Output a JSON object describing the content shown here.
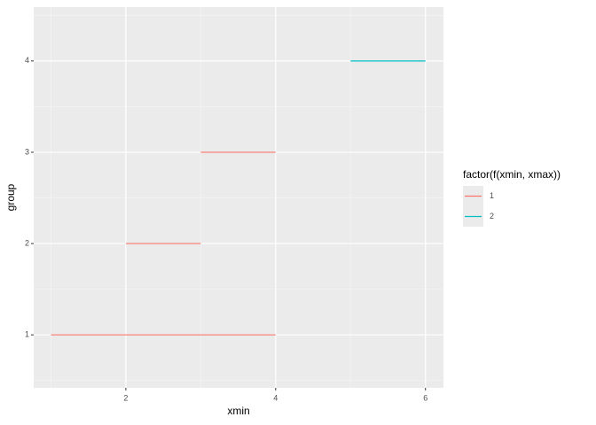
{
  "chart_data": {
    "type": "segment",
    "x_label": "xmin",
    "y_label": "group",
    "legend_title": "factor(f(xmin, xmax))",
    "legend_position": "right",
    "series": [
      {
        "name": "1",
        "color": "#F8766D",
        "x": [
          1,
          2,
          3
        ],
        "x_end": [
          4,
          3,
          4
        ],
        "values": [
          1,
          2,
          3
        ]
      },
      {
        "name": "2",
        "color": "#00BFC4",
        "x": [
          5
        ],
        "x_end": [
          6
        ],
        "values": [
          4
        ]
      }
    ],
    "xlim": [
      0.77,
      6.24
    ],
    "xticks": [
      2,
      4,
      6
    ],
    "ylim": [
      0.42,
      4.59
    ],
    "yticks": [
      1,
      2,
      3,
      4
    ],
    "grid": true,
    "minor_grid": true
  }
}
